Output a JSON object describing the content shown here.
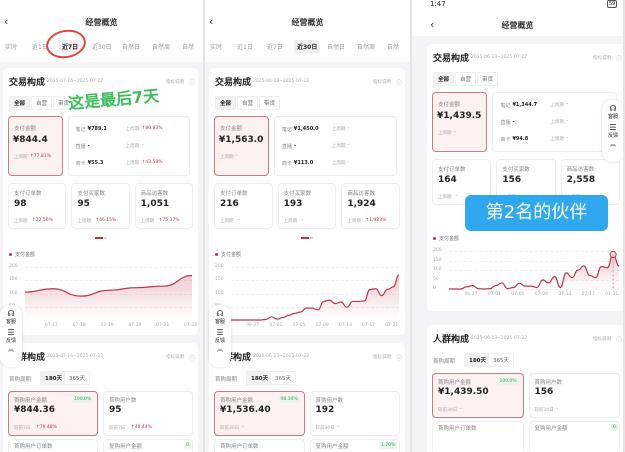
{
  "panels": [
    {
      "status_time": "",
      "title": "经营概览",
      "tabs": [
        "实时",
        "近1日",
        "近7日",
        "近30日",
        "自然日",
        "自然周",
        "自然"
      ],
      "active_tab": 2,
      "trade": {
        "title": "交易构成",
        "date": "2025-07-16~2025-07-22",
        "help": "指标说明",
        "chips": [
          "全部",
          "自营",
          "带货"
        ],
        "pay": {
          "label": "支付金额",
          "value": "¥844.4",
          "compare": "上周期",
          "change": "↑77.81%"
        },
        "breakdown": [
          {
            "label": "笔记",
            "value": "¥789.1",
            "compare": "上周期",
            "change": "↑80.83%"
          },
          {
            "label": "直播",
            "value": "-",
            "compare": "上周期",
            "change": "-"
          },
          {
            "label": "商卡",
            "value": "¥55.3",
            "compare": "上周期",
            "change": "↑43.58%"
          }
        ],
        "stats": [
          {
            "label": "支付订单数",
            "value": "98",
            "compare": "上周期",
            "change": "↑22.50%"
          },
          {
            "label": "支付买家数",
            "value": "95",
            "compare": "上周期",
            "change": "↑46.15%"
          },
          {
            "label": "商品访客数",
            "value": "1,051",
            "compare": "上周期",
            "change": "↑75.17%"
          }
        ]
      },
      "chart_data": {
        "type": "area",
        "legend": "支付金额",
        "yticks": [
          "200",
          "150",
          "100",
          "50"
        ],
        "ylim": [
          0,
          200
        ],
        "xticks": [
          "07-17",
          "07-18",
          "07-19",
          "07-20",
          "07-21",
          "07-22"
        ],
        "x": [
          "07-16",
          "07-17",
          "07-18",
          "07-19",
          "07-20",
          "07-21",
          "07-22"
        ],
        "values": [
          105,
          118,
          90,
          112,
          122,
          128,
          168
        ]
      },
      "crowd": {
        "title": "人群构成",
        "date": "2025-07-16~2025-07-22",
        "help": "指标说明",
        "period_label": "首购周期",
        "chips": [
          "180天",
          "365天"
        ],
        "cards": [
          {
            "label": "首购用户金额",
            "value": "¥844.36",
            "badge": "100.0%",
            "compare": "较前7日",
            "change": "↑79.48%"
          },
          {
            "label": "首购用户数",
            "value": "95",
            "badge": "",
            "compare": "较前7日",
            "change": "↑48.44%"
          }
        ],
        "next": [
          {
            "label": "首购用户订单数",
            "badge": ""
          },
          {
            "label": "复购用户金额",
            "badge": "0"
          }
        ]
      },
      "widget": {
        "service": "客服",
        "feedback": "反馈"
      },
      "annotation": {
        "text": "这是最后7天",
        "color": "#3cbf5a",
        "circle_color": "#e0443a"
      }
    },
    {
      "status_time": "",
      "title": "经营概览",
      "tabs": [
        "实时",
        "近1日",
        "近7日",
        "近30日",
        "自然日",
        "自然周",
        "自然"
      ],
      "active_tab": 3,
      "trade": {
        "title": "交易构成",
        "date": "2025-06-23~2025-07-22",
        "help": "指标说明",
        "chips": [
          "全部",
          "自营",
          "带货"
        ],
        "pay": {
          "label": "支付金额",
          "value": "¥1,563.0",
          "compare": "上周期",
          "change": "-"
        },
        "breakdown": [
          {
            "label": "笔记",
            "value": "¥1,450.0",
            "compare": "上周期",
            "change": "-"
          },
          {
            "label": "直播",
            "value": "-",
            "compare": "上周期",
            "change": "-"
          },
          {
            "label": "商卡",
            "value": "¥113.0",
            "compare": "上周期",
            "change": "-"
          }
        ],
        "stats": [
          {
            "label": "支付订单数",
            "value": "216",
            "compare": "上周期",
            "change": "-"
          },
          {
            "label": "支付买家数",
            "value": "193",
            "compare": "上周期",
            "change": "-"
          },
          {
            "label": "商品访客数",
            "value": "1,924",
            "compare": "上周期",
            "change": "↑1,923%"
          }
        ]
      },
      "chart_data": {
        "type": "area",
        "legend": "支付金额",
        "yticks": [
          "200",
          "150",
          "100",
          "50"
        ],
        "ylim": [
          0,
          200
        ],
        "xticks": [
          "06-27",
          "07-01",
          "07-05",
          "07-09",
          "07-13",
          "07-17",
          "07-21"
        ],
        "x_range": [
          "06-23",
          "07-22"
        ],
        "values": [
          0,
          0,
          0,
          0,
          0,
          0,
          2,
          12,
          3,
          10,
          18,
          25,
          30,
          45,
          45,
          38,
          70,
          75,
          62,
          68,
          48,
          70,
          70,
          72,
          115,
          118,
          92,
          115,
          125,
          170
        ]
      },
      "crowd": {
        "title": "人群构成",
        "date": "2025-06-23~2025-07-22",
        "help": "指标说明",
        "period_label": "首购周期",
        "chips": [
          "180天",
          "365天"
        ],
        "cards": [
          {
            "label": "首购用户金额",
            "value": "¥1,536.40",
            "badge": "98.30%",
            "compare": "较前30日",
            "change": "-"
          },
          {
            "label": "首购用户数",
            "value": "192",
            "badge": "",
            "compare": "较前30日",
            "change": "-"
          }
        ],
        "next": [
          {
            "label": "首购用户订单数",
            "badge": ""
          },
          {
            "label": "复购用户金额",
            "badge": "1.70%"
          }
        ]
      },
      "widget": {
        "service": "客服",
        "feedback": "反馈"
      }
    },
    {
      "status_time": "1:47",
      "battery": "59",
      "title": "经营概览",
      "trade": {
        "title": "交易构成",
        "date": "2025-06-23~2025-07-22",
        "help": "指标说明",
        "chips": [
          "全部",
          "自营",
          "带货"
        ],
        "pay": {
          "label": "支付金额",
          "value": "¥1,439.5",
          "compare": "上周期",
          "change": "-"
        },
        "breakdown": [
          {
            "label": "笔记",
            "value": "¥1,344.7",
            "compare": "上周期",
            "change": "-"
          },
          {
            "label": "直播",
            "value": "-",
            "compare": "上周期",
            "change": "-"
          },
          {
            "label": "商卡",
            "value": "¥94.8",
            "compare": "上周期",
            "change": "-"
          }
        ],
        "stats": [
          {
            "label": "支付订单数",
            "value": "164",
            "compare": "上周期",
            "change": "-"
          },
          {
            "label": "支付买家数",
            "value": "156",
            "compare": "上周期",
            "change": "-"
          },
          {
            "label": "商品访客数",
            "value": "2,558",
            "compare": "上周期",
            "change": "-"
          }
        ]
      },
      "chart_data": {
        "type": "area",
        "legend": "支付金额",
        "yticks": [
          "200",
          "150",
          "100",
          "50",
          "0"
        ],
        "ylim": [
          0,
          200
        ],
        "xticks": [
          "06-27",
          "07-01",
          "07-05",
          "07-09",
          "07-13",
          "07-17",
          "07-21"
        ],
        "x_range": [
          "06-23",
          "07-22"
        ],
        "values": [
          0,
          0,
          0,
          12,
          18,
          2,
          0,
          2,
          18,
          32,
          2,
          8,
          30,
          15,
          15,
          8,
          48,
          32,
          65,
          8,
          85,
          60,
          100,
          122,
          72,
          60,
          118,
          112,
          182,
          122
        ]
      },
      "crowd": {
        "title": "人群构成",
        "date": "2025-06-23~2025-07-22",
        "help": "指标说明",
        "period_label": "首购周期",
        "chips": [
          "180天",
          "365天"
        ],
        "cards": [
          {
            "label": "首购用户金额",
            "value": "¥1,439.50",
            "badge": "100.0%",
            "compare": "较前30日",
            "change": "-"
          },
          {
            "label": "首购用户数",
            "value": "156",
            "badge": "",
            "compare": "较前30日",
            "change": "-"
          }
        ],
        "next": [
          {
            "label": "首购用户订单数",
            "badge": ""
          },
          {
            "label": "复购用户金额",
            "badge": "0"
          }
        ]
      },
      "widget": {
        "service": "客服",
        "feedback": "反馈"
      },
      "overlay": {
        "text": "第2名的伙伴",
        "color": "#2fa8f0"
      }
    }
  ],
  "colors": {
    "accent": "#c0334a",
    "selected_bg": "#fdf1f2"
  }
}
